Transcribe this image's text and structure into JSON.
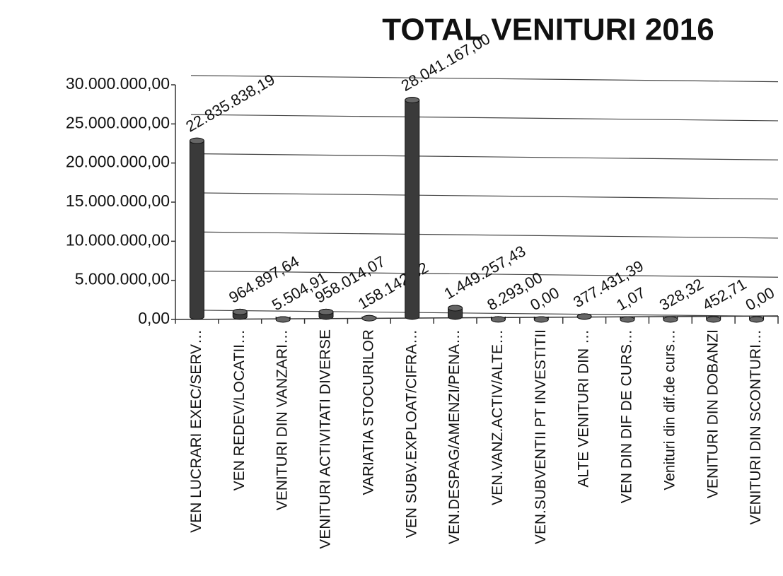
{
  "chart_data": {
    "type": "bar",
    "title": "TOTAL VENITURI  2016",
    "categories": [
      "VEN LUCRARI EXEC/SERV…",
      "VEN REDEV/LOCATII…",
      "VENITURI DIN VANZARI…",
      "VENITURI ACTIVITATI DIVERSE",
      "VARIATIA STOCURILOR",
      "VEN SUBV.EXPLOAT/CIFRA…",
      "VEN.DESPAG/AMENZI/PENA…",
      "VEN.VANZ.ACTIV/ALTE…",
      "VEN.SUBVENTII PT INVESTITII",
      "ALTE VENITURI DIN …",
      "VEN DIN DIF DE CURS…",
      "Venituri din dif.de  curs…",
      "VENITURI DIN DOBANZI",
      "VENITURI DIN SCONTURI…"
    ],
    "values": [
      22835838.19,
      964897.64,
      5504.91,
      958014.07,
      158142.32,
      28041167.0,
      1449257.43,
      8293.0,
      0,
      377431.39,
      1.07,
      328.32,
      452.71,
      0
    ],
    "value_labels": [
      "22.835.838,19",
      "964.897,64",
      "5.504,91",
      "958.014,07",
      "158.142,32",
      "28.041.167,00",
      "1.449.257,43",
      "8.293,00",
      "0,00",
      "377.431,39",
      "1,07",
      "328,32",
      "452,71",
      "0,00"
    ],
    "color": "#3a3a3a",
    "ylim": [
      0,
      30000000
    ],
    "yticks": [
      {
        "value": 0,
        "label": "0,00"
      },
      {
        "value": 5000000,
        "label": "5.000.000,00"
      },
      {
        "value": 10000000,
        "label": "10.000.000,00"
      },
      {
        "value": 15000000,
        "label": "15.000.000,00"
      },
      {
        "value": 20000000,
        "label": "20.000.000,00"
      },
      {
        "value": 25000000,
        "label": "25.000.000,00"
      },
      {
        "value": 30000000,
        "label": "30.000.000,00"
      }
    ],
    "grid": true
  }
}
